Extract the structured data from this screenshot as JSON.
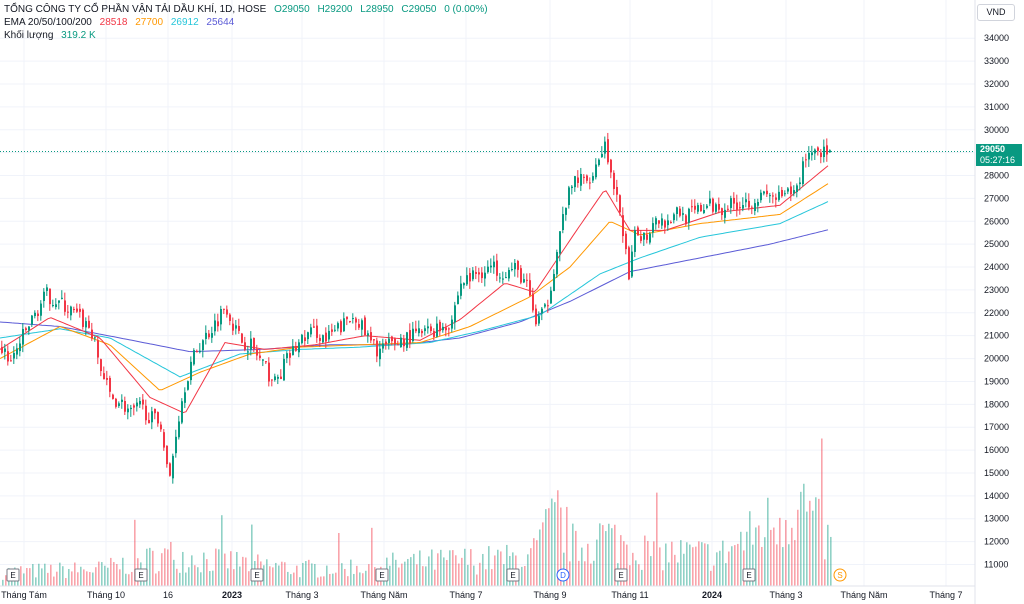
{
  "header": {
    "symbol_title": "TỔNG CÔNG TY CỔ PHẦN VẬN TẢI DẦU KHÍ, 1D, HOSE",
    "ohlc": [
      "O29050",
      "H29200",
      "L28950",
      "C29050",
      "0 (0.00%)"
    ],
    "ema_label": "EMA 20/50/100/200",
    "ema_values": [
      "28518",
      "27700",
      "26912",
      "25644"
    ],
    "volume_label": "Khối lượng",
    "volume_value": "319.2 K"
  },
  "currency_button": "VND",
  "last_price": {
    "price": "29050",
    "countdown": "05:27:16"
  },
  "colors": {
    "up": "#089981",
    "down": "#f23645",
    "ema20": "#f23645",
    "ema50": "#ff9800",
    "ema100": "#26c6da",
    "ema200": "#5b5bd6"
  },
  "event_markers": [
    "E",
    "E",
    "E",
    "E",
    "E",
    "D",
    "E",
    "E",
    "S"
  ],
  "chart_data": {
    "type": "candlestick",
    "y_ticks": [
      "34000",
      "33000",
      "32000",
      "31000",
      "30000",
      "29000",
      "28000",
      "27000",
      "26000",
      "25000",
      "24000",
      "23000",
      "22000",
      "21000",
      "20000",
      "19000",
      "18000",
      "17000",
      "16000",
      "15000",
      "14000",
      "13000",
      "12000",
      "11000"
    ],
    "ylim": [
      10500,
      34500
    ],
    "x_ticks": [
      "Tháng Tám",
      "Tháng 10",
      "16",
      "2023",
      "Tháng 3",
      "Tháng Năm",
      "Tháng 7",
      "Tháng 9",
      "Tháng 11",
      "2024",
      "Tháng 3",
      "Tháng Năm",
      "Tháng 7"
    ],
    "close_anchors": [
      [
        0,
        20500
      ],
      [
        10,
        19800
      ],
      [
        20,
        20800
      ],
      [
        30,
        21600
      ],
      [
        45,
        22800
      ],
      [
        60,
        22400
      ],
      [
        75,
        21900
      ],
      [
        90,
        21300
      ],
      [
        100,
        19500
      ],
      [
        110,
        18300
      ],
      [
        120,
        18100
      ],
      [
        130,
        17600
      ],
      [
        140,
        17900
      ],
      [
        150,
        17400
      ],
      [
        160,
        17200
      ],
      [
        168,
        14500
      ],
      [
        175,
        16800
      ],
      [
        185,
        19100
      ],
      [
        195,
        20300
      ],
      [
        205,
        21000
      ],
      [
        215,
        21600
      ],
      [
        225,
        22400
      ],
      [
        232,
        21500
      ],
      [
        240,
        20800
      ],
      [
        250,
        20600
      ],
      [
        258,
        20000
      ],
      [
        265,
        19500
      ],
      [
        275,
        18900
      ],
      [
        285,
        19900
      ],
      [
        295,
        20500
      ],
      [
        305,
        21000
      ],
      [
        315,
        21200
      ],
      [
        325,
        20800
      ],
      [
        340,
        21400
      ],
      [
        355,
        21900
      ],
      [
        365,
        21000
      ],
      [
        375,
        20400
      ],
      [
        385,
        20500
      ],
      [
        395,
        20700
      ],
      [
        405,
        20900
      ],
      [
        420,
        21100
      ],
      [
        435,
        21300
      ],
      [
        450,
        21600
      ],
      [
        460,
        23300
      ],
      [
        475,
        23700
      ],
      [
        490,
        24000
      ],
      [
        505,
        23800
      ],
      [
        515,
        23900
      ],
      [
        525,
        23300
      ],
      [
        535,
        21600
      ],
      [
        545,
        22100
      ],
      [
        555,
        24500
      ],
      [
        565,
        26800
      ],
      [
        575,
        27900
      ],
      [
        585,
        27700
      ],
      [
        595,
        28500
      ],
      [
        605,
        29500
      ],
      [
        612,
        27300
      ],
      [
        620,
        26400
      ],
      [
        628,
        23400
      ],
      [
        635,
        25600
      ],
      [
        645,
        25300
      ],
      [
        655,
        26300
      ],
      [
        665,
        25900
      ],
      [
        675,
        26500
      ],
      [
        685,
        26200
      ],
      [
        695,
        26400
      ],
      [
        705,
        26700
      ],
      [
        720,
        26600
      ],
      [
        735,
        26800
      ],
      [
        750,
        26900
      ],
      [
        765,
        27100
      ],
      [
        780,
        27000
      ],
      [
        795,
        27300
      ],
      [
        805,
        28900
      ],
      [
        815,
        29200
      ],
      [
        825,
        29000
      ],
      [
        830,
        29050
      ]
    ],
    "ema20_anchors": [
      [
        0,
        20400
      ],
      [
        50,
        21800
      ],
      [
        100,
        20900
      ],
      [
        150,
        18300
      ],
      [
        185,
        17600
      ],
      [
        225,
        20700
      ],
      [
        265,
        20400
      ],
      [
        315,
        20600
      ],
      [
        365,
        21000
      ],
      [
        420,
        20800
      ],
      [
        460,
        21700
      ],
      [
        505,
        23300
      ],
      [
        535,
        22900
      ],
      [
        575,
        25500
      ],
      [
        605,
        27400
      ],
      [
        630,
        25600
      ],
      [
        665,
        25600
      ],
      [
        720,
        26400
      ],
      [
        780,
        26700
      ],
      [
        830,
        28500
      ]
    ],
    "ema50_anchors": [
      [
        0,
        20000
      ],
      [
        60,
        21400
      ],
      [
        110,
        20600
      ],
      [
        160,
        18600
      ],
      [
        200,
        19400
      ],
      [
        250,
        20200
      ],
      [
        300,
        20500
      ],
      [
        360,
        20600
      ],
      [
        420,
        20700
      ],
      [
        470,
        21400
      ],
      [
        530,
        22700
      ],
      [
        570,
        24000
      ],
      [
        610,
        26000
      ],
      [
        640,
        25400
      ],
      [
        700,
        25900
      ],
      [
        780,
        26300
      ],
      [
        830,
        27700
      ]
    ],
    "ema100_anchors": [
      [
        0,
        20900
      ],
      [
        60,
        21300
      ],
      [
        110,
        20900
      ],
      [
        180,
        19200
      ],
      [
        240,
        20200
      ],
      [
        300,
        20400
      ],
      [
        360,
        20500
      ],
      [
        430,
        20700
      ],
      [
        480,
        21200
      ],
      [
        540,
        21900
      ],
      [
        600,
        23700
      ],
      [
        640,
        24400
      ],
      [
        700,
        25300
      ],
      [
        780,
        25900
      ],
      [
        830,
        26900
      ]
    ],
    "ema200_anchors": [
      [
        0,
        21600
      ],
      [
        60,
        21400
      ],
      [
        120,
        20900
      ],
      [
        190,
        20300
      ],
      [
        260,
        20400
      ],
      [
        330,
        20600
      ],
      [
        400,
        20600
      ],
      [
        460,
        20900
      ],
      [
        520,
        21600
      ],
      [
        570,
        22500
      ],
      [
        630,
        23800
      ],
      [
        700,
        24400
      ],
      [
        770,
        25000
      ],
      [
        830,
        25650
      ]
    ],
    "volume_anchors": [
      [
        0,
        0.25
      ],
      [
        100,
        0.3
      ],
      [
        170,
        0.55
      ],
      [
        300,
        0.3
      ],
      [
        450,
        0.45
      ],
      [
        530,
        0.5
      ],
      [
        556,
        1.25
      ],
      [
        575,
        0.65
      ],
      [
        600,
        0.9
      ],
      [
        650,
        0.6
      ],
      [
        720,
        0.55
      ],
      [
        800,
        1.5
      ],
      [
        830,
        0.7
      ]
    ]
  }
}
